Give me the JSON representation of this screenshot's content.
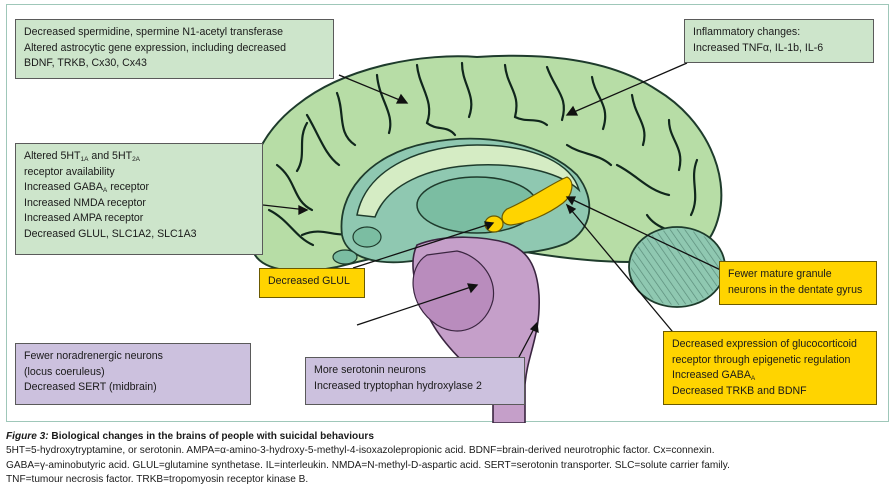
{
  "boxes": {
    "top_left": {
      "line1": "Decreased spermidine, spermine N1-acetyl transferase",
      "line2": "Altered astrocytic gene expression, including decreased",
      "line3": "BDNF, TRKB, Cx30, Cx43"
    },
    "top_right": {
      "line1": "Inflammatory changes:",
      "line2": "Increased TNFα, IL-1b, IL-6"
    },
    "mid_left": {
      "l1_a": "Altered 5HT",
      "l1_sub1": "1A",
      "l1_b": " and 5HT",
      "l1_sub2": "2A",
      "line2": "receptor availability",
      "l3_a": "Increased GABA",
      "l3_sub": "A",
      "l3_b": " receptor",
      "line4": "Increased NMDA receptor",
      "line5": "Increased AMPA receptor",
      "line6": "Decreased GLUL, SLC1A2, SLC1A3"
    },
    "glul": {
      "line1": "Decreased GLUL"
    },
    "dentate": {
      "line1": "Fewer mature granule",
      "line2": "neurons in the dentate gyrus"
    },
    "glucocorticoid": {
      "line1": "Decreased expression of glucocorticoid",
      "line2": "receptor through epigenetic regulation",
      "l3_a": "Increased GABA",
      "l3_sub": "A",
      "line4": "Decreased TRKB and BDNF"
    },
    "noradrenergic": {
      "line1": "Fewer noradrenergic neurons",
      "line2": "(locus coeruleus)",
      "line3": "Decreased SERT (midbrain)"
    },
    "serotonin": {
      "line1": "More serotonin neurons",
      "line2": "Increased tryptophan hydroxylase 2"
    }
  },
  "caption": {
    "figure_label": "Figure 3:",
    "title": " Biological changes in the brains of people with suicidal behaviours",
    "line1": "5HT=5-hydroxytryptamine, or serotonin. AMPA=α-amino-3-hydroxy-5-methyl-4-isoxazolepropionic acid. BDNF=brain-derived neurotrophic factor. Cx=connexin.",
    "line2": "GABA=γ-aminobutyric acid. GLUL=glutamine synthetase. IL=interleukin. NMDA=N-methyl-D-aspartic acid. SERT=serotonin transporter. SLC=solute carrier family.",
    "line3": "TNF=tumour necrosis factor. TRKB=tropomyosin receptor kinase B."
  },
  "colors": {
    "cortex": "#b7dda6",
    "inner": "#8fc8b1",
    "brainstem": "#c59fc9",
    "highlight": "#ffd400",
    "green_box": "#cde5cb",
    "purple_box": "#ccc1de"
  }
}
